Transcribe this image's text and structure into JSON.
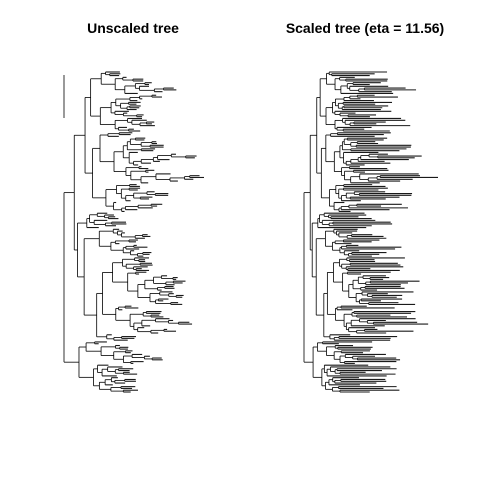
{
  "figure": {
    "panels": [
      {
        "id": "unscaled",
        "title": "Unscaled tree"
      },
      {
        "id": "scaled",
        "title": "Scaled tree (eta = 11.56)"
      }
    ]
  },
  "chart_data": [
    {
      "type": "phylogram",
      "title": "Unscaled tree",
      "tip_count": 180,
      "branch_color": "#000000",
      "tip_fill_color": "#1a1a1a",
      "axes": false
    },
    {
      "type": "phylogram",
      "title": "Scaled tree (eta = 11.56)",
      "tip_count": 180,
      "branch_color": "#000000",
      "tip_fill_color": "#1a1a1a",
      "axes": false
    }
  ]
}
